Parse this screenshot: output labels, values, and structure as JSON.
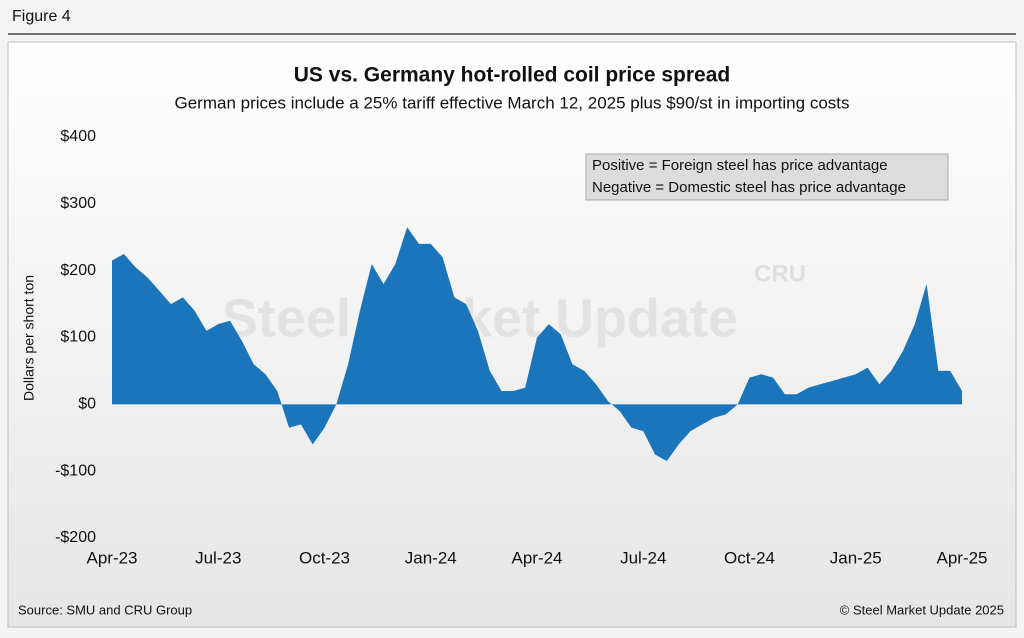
{
  "figure_label": "Figure 4",
  "source": "Source: SMU and CRU Group",
  "copyright": "© Steel Market Update 2025",
  "chart_data": {
    "type": "area",
    "title": "US vs. Germany hot-rolled coil price spread",
    "subtitle": "German prices include a 25% tariff effective March 12, 2025 plus $90/st in importing costs",
    "y_label": "Dollars per short ton",
    "annotations": [
      "Positive = Foreign steel has price advantage",
      "Negative = Domestic steel has price advantage"
    ],
    "watermark": "Steel Market Update",
    "watermark_logo": "CRU",
    "color": "#1b75bb",
    "categories": [
      "Apr-23",
      null,
      null,
      null,
      null,
      null,
      null,
      null,
      null,
      "Jul-23",
      null,
      null,
      null,
      null,
      null,
      null,
      null,
      null,
      "Oct-23",
      null,
      null,
      null,
      null,
      null,
      null,
      null,
      null,
      "Jan-24",
      null,
      null,
      null,
      null,
      null,
      null,
      null,
      null,
      "Apr-24",
      null,
      null,
      null,
      null,
      null,
      null,
      null,
      null,
      "Jul-24",
      null,
      null,
      null,
      null,
      null,
      null,
      null,
      null,
      "Oct-24",
      null,
      null,
      null,
      null,
      null,
      null,
      null,
      null,
      "Jan-25",
      null,
      null,
      null,
      null,
      null,
      null,
      null,
      null,
      "Apr-25"
    ],
    "values": [
      215,
      225,
      205,
      190,
      170,
      150,
      160,
      140,
      110,
      120,
      125,
      95,
      60,
      45,
      20,
      -35,
      -30,
      -60,
      -35,
      0,
      60,
      140,
      210,
      180,
      210,
      265,
      240,
      240,
      220,
      160,
      150,
      110,
      50,
      20,
      20,
      25,
      100,
      120,
      105,
      60,
      50,
      30,
      5,
      -10,
      -35,
      -40,
      -75,
      -85,
      -60,
      -40,
      -30,
      -20,
      -15,
      0,
      40,
      45,
      40,
      15,
      15,
      25,
      30,
      35,
      40,
      45,
      55,
      30,
      50,
      80,
      120,
      180,
      50,
      50,
      20
    ],
    "ylim": [
      -200,
      400
    ],
    "yticks": [
      {
        "value": -200,
        "label": "-$200"
      },
      {
        "value": -100,
        "label": "-$100"
      },
      {
        "value": 0,
        "label": "$0"
      },
      {
        "value": 100,
        "label": "$100"
      },
      {
        "value": 200,
        "label": "$200"
      },
      {
        "value": 300,
        "label": "$300"
      },
      {
        "value": 400,
        "label": "$400"
      }
    ]
  }
}
